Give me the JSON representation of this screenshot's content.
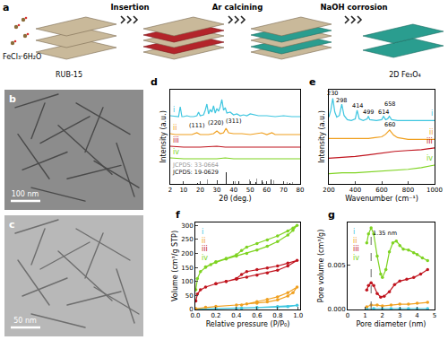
{
  "diagram": {
    "panel_a": {
      "label": "a",
      "steps": [
        "Insertion",
        "Ar calcining",
        "NaOH corrosion"
      ],
      "reagent": "FeCl₃·6H₂O",
      "start": "RUB-15",
      "product": "2D Fe₃O₄"
    },
    "panel_b": {
      "label": "b",
      "scale_bar": "100 nm"
    },
    "panel_c": {
      "label": "c",
      "scale_bar": "50 nm"
    }
  },
  "chart_data": [
    {
      "panel": "d",
      "type": "line",
      "x_label": "2θ (deg.)",
      "y_label": "Intensity (a.u.)",
      "xlim": [
        2,
        80
      ],
      "xticks": [
        2,
        10,
        20,
        30,
        40,
        50,
        60,
        70,
        80
      ],
      "ylim": [
        0,
        10.5
      ],
      "tick_labels": "x",
      "legend": "left",
      "series": [
        {
          "name": "i",
          "color": "#3ec6e0",
          "x": [
            2,
            5,
            7,
            8,
            9,
            10,
            12,
            14,
            16,
            18,
            19,
            20,
            22,
            23,
            24,
            25,
            26,
            27,
            28,
            29,
            30,
            31,
            32,
            33,
            34,
            35,
            36,
            38,
            40,
            42,
            44,
            46,
            48,
            50,
            55,
            60,
            65,
            70,
            75,
            80
          ],
          "values": [
            7.6,
            7.5,
            7.5,
            8.6,
            7.5,
            7.5,
            7.6,
            7.5,
            7.5,
            7.6,
            8.0,
            7.6,
            7.7,
            8.2,
            8.9,
            7.8,
            8.3,
            8.0,
            8.7,
            7.9,
            8.4,
            8.1,
            8.6,
            9.4,
            8.2,
            8.5,
            7.9,
            8.0,
            7.7,
            7.8,
            7.6,
            7.7,
            7.6,
            7.8,
            7.6,
            7.6,
            7.5,
            7.6,
            7.5,
            7.5
          ]
        },
        {
          "name": "ii",
          "color": "#f0a020",
          "x": [
            2,
            5,
            10,
            15,
            18,
            20,
            25,
            28,
            30,
            32,
            34,
            35.5,
            37,
            40,
            45,
            50,
            57,
            60,
            63,
            65,
            70,
            75,
            80
          ],
          "values": [
            5.6,
            5.5,
            5.5,
            5.5,
            5.7,
            5.5,
            5.5,
            5.6,
            5.9,
            5.6,
            5.7,
            6.2,
            5.7,
            5.6,
            5.6,
            5.5,
            5.7,
            5.5,
            5.7,
            5.5,
            5.5,
            5.5,
            5.5
          ]
        },
        {
          "name": "iii",
          "color": "#c0141e",
          "x": [
            2,
            10,
            20,
            30,
            35,
            40,
            50,
            60,
            70,
            80
          ],
          "values": [
            4.2,
            4.1,
            4.1,
            4.2,
            4.1,
            4.1,
            4.1,
            4.1,
            4.1,
            4.1
          ]
        },
        {
          "name": "iv",
          "color": "#7ed321",
          "x": [
            2,
            10,
            20,
            30,
            35,
            40,
            50,
            60,
            70,
            80
          ],
          "values": [
            2.9,
            2.8,
            2.8,
            2.8,
            2.9,
            2.8,
            2.8,
            2.8,
            2.8,
            2.8
          ]
        },
        {
          "type": "bar",
          "color": "#999999",
          "x": [
            24.1,
            33.2,
            35.6,
            40.9,
            49.5,
            54.1,
            57.6,
            62.4,
            64.0,
            72.0,
            75.5
          ],
          "values": [
            0.5,
            1.3,
            0.9,
            0.3,
            0.5,
            0.6,
            0.2,
            0.4,
            0.4,
            0.2,
            0.2
          ]
        },
        {
          "type": "bar",
          "color": "#222222",
          "x": [
            18.3,
            30.1,
            35.4,
            43.1,
            53.4,
            57.0,
            62.6,
            74.0
          ],
          "values": [
            0.1,
            0.4,
            1.3,
            0.3,
            0.2,
            0.4,
            0.5,
            0.15
          ]
        }
      ],
      "annotations": [
        {
          "text": "(111)",
          "x": 18,
          "y": 6.5
        },
        {
          "text": "(220)",
          "x": 29,
          "y": 6.8
        },
        {
          "text": "(311)",
          "x": 40,
          "y": 7.0
        },
        {
          "text": "JCPDS: 33-0664",
          "x": 17,
          "y": 2.1,
          "color": "#999999"
        },
        {
          "text": "JCPDS: 19-0629",
          "x": 17,
          "y": 1.3,
          "color": "#222222"
        }
      ]
    },
    {
      "panel": "e",
      "type": "line",
      "x_label": "Wavenumber (cm⁻¹)",
      "y_label": "Intensity (a.u.)",
      "xlim": [
        200,
        1000
      ],
      "xticks": [
        200,
        400,
        600,
        800,
        1000
      ],
      "ylim": [
        0,
        11
      ],
      "tick_labels": "x",
      "legend": "right",
      "series": [
        {
          "name": "i",
          "color": "#3ec6e0",
          "x": [
            200,
            215,
            230,
            245,
            260,
            280,
            298,
            315,
            340,
            370,
            400,
            414,
            430,
            460,
            490,
            499,
            510,
            560,
            600,
            614,
            630,
            645,
            658,
            675,
            720,
            800,
            900,
            1000
          ],
          "values": [
            7.8,
            8.6,
            10.0,
            8.4,
            7.8,
            8.0,
            9.3,
            8.0,
            7.5,
            7.4,
            7.6,
            8.6,
            7.6,
            7.4,
            7.6,
            7.9,
            7.5,
            7.4,
            7.5,
            7.9,
            7.5,
            7.6,
            7.9,
            7.5,
            7.4,
            7.4,
            7.4,
            7.4
          ]
        },
        {
          "name": "ii",
          "color": "#f0a020",
          "x": [
            200,
            300,
            400,
            500,
            550,
            600,
            630,
            650,
            660,
            670,
            690,
            720,
            760,
            800,
            900,
            1000
          ],
          "values": [
            5.3,
            5.3,
            5.3,
            5.3,
            5.4,
            5.5,
            5.8,
            6.2,
            6.3,
            6.1,
            5.7,
            5.4,
            5.3,
            5.2,
            5.2,
            5.2
          ]
        },
        {
          "name": "iii",
          "color": "#c0141e",
          "x": [
            200,
            300,
            400,
            500,
            600,
            700,
            800,
            900,
            1000
          ],
          "values": [
            3.0,
            3.1,
            3.2,
            3.4,
            3.6,
            3.8,
            3.9,
            4.0,
            4.2
          ]
        },
        {
          "name": "iv",
          "color": "#7ed321",
          "x": [
            200,
            300,
            400,
            500,
            600,
            700,
            800,
            900,
            1000
          ],
          "values": [
            1.2,
            1.3,
            1.3,
            1.4,
            1.5,
            1.6,
            1.7,
            1.9,
            2.2
          ]
        }
      ],
      "annotations": [
        {
          "text": "230",
          "x": 230,
          "y": 10.6
        },
        {
          "text": "298",
          "x": 298,
          "y": 9.7
        },
        {
          "text": "414",
          "x": 414,
          "y": 9.1
        },
        {
          "text": "499",
          "x": 499,
          "y": 8.4
        },
        {
          "text": "614",
          "x": 614,
          "y": 8.4
        },
        {
          "text": "658",
          "x": 658,
          "y": 9.3
        },
        {
          "text": "660",
          "x": 660,
          "y": 6.9
        }
      ]
    },
    {
      "panel": "f",
      "type": "line",
      "marker": "circle",
      "x_label": "Relative pressure (P/P₀)",
      "y_label": "Volume (cm³/g STP)",
      "xlim": [
        0,
        1.02
      ],
      "xticks": [
        {
          "value": 0,
          "label": "0.0"
        },
        {
          "value": 0.2,
          "label": "0.2"
        },
        {
          "value": 0.4,
          "label": "0.4"
        },
        {
          "value": 0.6,
          "label": "0.6"
        },
        {
          "value": 0.8,
          "label": "0.8"
        },
        {
          "value": 1.0,
          "label": "1.0"
        }
      ],
      "ylim": [
        0,
        310
      ],
      "yticks": [
        0,
        50,
        100,
        150,
        200,
        250,
        300
      ],
      "legend": "upper left",
      "series": [
        {
          "name": "i",
          "color": "#3ec6e0",
          "x": [
            0.005,
            0.2,
            0.4,
            0.6,
            0.8,
            0.9,
            0.99,
            0.8,
            0.6,
            0.45
          ],
          "values": [
            1,
            3,
            4,
            6,
            8,
            10,
            15,
            10,
            7,
            5
          ]
        },
        {
          "name": "ii",
          "color": "#f0a020",
          "x": [
            0.005,
            0.1,
            0.2,
            0.4,
            0.6,
            0.7,
            0.8,
            0.9,
            0.95,
            0.99,
            0.9,
            0.8,
            0.7,
            0.6,
            0.5,
            0.45
          ],
          "values": [
            3,
            8,
            11,
            16,
            22,
            27,
            34,
            48,
            60,
            80,
            60,
            45,
            36,
            28,
            20,
            16
          ]
        },
        {
          "name": "iii",
          "color": "#c0141e",
          "x": [
            0.005,
            0.02,
            0.05,
            0.1,
            0.2,
            0.3,
            0.4,
            0.5,
            0.6,
            0.7,
            0.8,
            0.9,
            0.99,
            0.9,
            0.8,
            0.7,
            0.6,
            0.5,
            0.45,
            0.4,
            0.3,
            0.2
          ],
          "values": [
            30,
            55,
            70,
            80,
            92,
            100,
            108,
            115,
            122,
            130,
            140,
            155,
            175,
            165,
            155,
            148,
            142,
            135,
            125,
            110,
            100,
            92
          ]
        },
        {
          "name": "iv",
          "color": "#7ed321",
          "x": [
            0.005,
            0.02,
            0.05,
            0.1,
            0.15,
            0.2,
            0.3,
            0.4,
            0.5,
            0.6,
            0.7,
            0.8,
            0.9,
            0.95,
            0.99,
            0.95,
            0.9,
            0.8,
            0.7,
            0.6,
            0.5,
            0.45,
            0.4,
            0.3,
            0.2,
            0.1
          ],
          "values": [
            70,
            110,
            135,
            150,
            160,
            168,
            180,
            190,
            200,
            212,
            225,
            242,
            265,
            282,
            300,
            290,
            280,
            262,
            248,
            235,
            222,
            210,
            195,
            182,
            170,
            152
          ]
        }
      ]
    },
    {
      "panel": "g",
      "type": "line",
      "marker": "circle",
      "x_label": "Pore diameter (nm)",
      "y_label": "Pore volume (cm³/g)",
      "xlim": [
        0,
        5
      ],
      "xticks": [
        0,
        1,
        2,
        3,
        4,
        5
      ],
      "ylim": [
        0,
        0.0098
      ],
      "yticks": [
        {
          "value": 0,
          "label": "0.000"
        },
        {
          "value": 0.005,
          "label": "0.005"
        }
      ],
      "legend": "upper left",
      "series": [
        {
          "name": "i",
          "color": "#3ec6e0",
          "x": [
            1.1,
            1.5,
            2.0,
            2.5,
            3.0,
            3.5,
            4.0,
            4.6
          ],
          "values": [
            0.0001,
            0.0001,
            0.0001,
            0.0001,
            0.0001,
            0.0001,
            0.0001,
            0.0001
          ]
        },
        {
          "name": "ii",
          "color": "#f0a020",
          "x": [
            1.1,
            1.35,
            1.7,
            2.0,
            2.5,
            3.0,
            3.5,
            4.0,
            4.6
          ],
          "values": [
            0.0003,
            0.0005,
            0.0005,
            0.0004,
            0.0005,
            0.0006,
            0.0006,
            0.0007,
            0.0008
          ]
        },
        {
          "name": "iii",
          "color": "#c0141e",
          "x": [
            1.1,
            1.2,
            1.35,
            1.5,
            1.7,
            1.9,
            2.1,
            2.4,
            2.7,
            3.0,
            3.4,
            3.8,
            4.2,
            4.6
          ],
          "values": [
            0.0022,
            0.0027,
            0.003,
            0.0027,
            0.0018,
            0.0014,
            0.0015,
            0.002,
            0.0028,
            0.0032,
            0.0034,
            0.0036,
            0.004,
            0.0045
          ]
        },
        {
          "name": "iv",
          "color": "#7ed321",
          "x": [
            1.1,
            1.2,
            1.35,
            1.5,
            1.7,
            1.9,
            2.0,
            2.2,
            2.4,
            2.6,
            2.8,
            3.0,
            3.2,
            3.5,
            3.8,
            4.0,
            4.3,
            4.6
          ],
          "values": [
            0.0075,
            0.0085,
            0.0092,
            0.0085,
            0.006,
            0.004,
            0.0036,
            0.0045,
            0.0065,
            0.0075,
            0.0077,
            0.0072,
            0.0068,
            0.0067,
            0.0064,
            0.0062,
            0.0058,
            0.0055
          ]
        }
      ],
      "annotations": [
        {
          "text": "1.35 nm",
          "x": 1.35,
          "y": 0.0086,
          "line_style": "dashed"
        }
      ]
    }
  ]
}
